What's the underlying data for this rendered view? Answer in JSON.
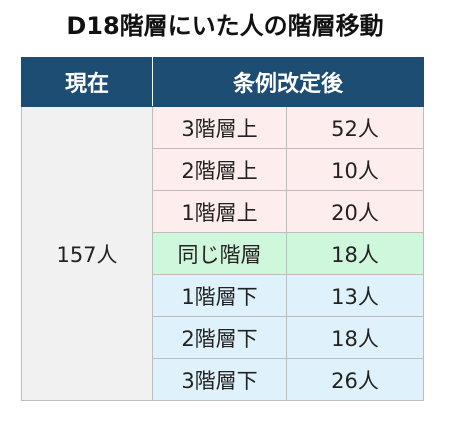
{
  "title": "D18階層にいた人の階層移動",
  "header": {
    "current": "現在",
    "after": "条例改定後"
  },
  "current_value": "157人",
  "colors": {
    "header_bg": "#1e4d74",
    "up": "#fdeeed",
    "same": "#cff7dc",
    "down": "#dff2fb",
    "current_bg": "#f1f1f1"
  },
  "chart_data": {
    "type": "table",
    "title": "D18階層にいた人の階層移動",
    "columns": [
      "現在",
      "条例改定後"
    ],
    "total": "157人",
    "rows": [
      {
        "label": "3階層上",
        "value": "52人",
        "group": "up"
      },
      {
        "label": "2階層上",
        "value": "10人",
        "group": "up"
      },
      {
        "label": "1階層上",
        "value": "20人",
        "group": "up"
      },
      {
        "label": "同じ階層",
        "value": "18人",
        "group": "same"
      },
      {
        "label": "1階層下",
        "value": "13人",
        "group": "down"
      },
      {
        "label": "2階層下",
        "value": "18人",
        "group": "down"
      },
      {
        "label": "3階層下",
        "value": "26人",
        "group": "down"
      }
    ]
  }
}
